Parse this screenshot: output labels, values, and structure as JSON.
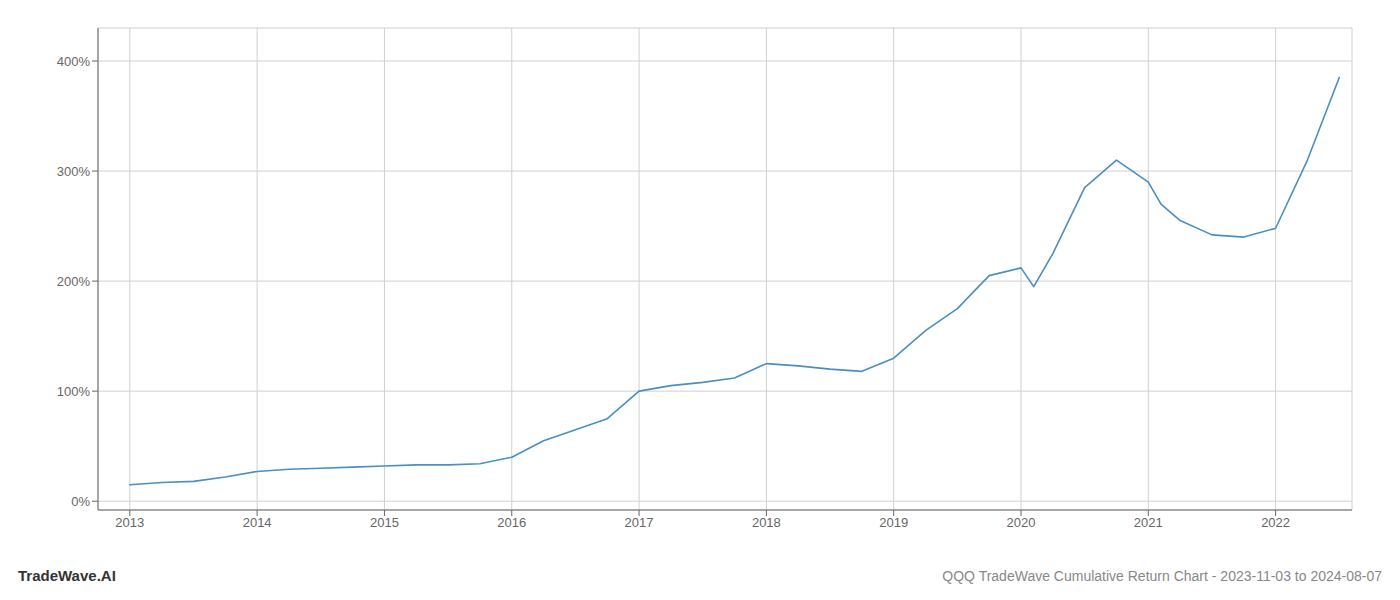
{
  "chart_data": {
    "type": "line",
    "title": "QQQ TradeWave Cumulative Return Chart - 2023-11-03 to 2024-08-07",
    "annotations": [
      "TradeWave.AI"
    ],
    "x": [
      2013.0,
      2013.25,
      2013.5,
      2013.75,
      2014.0,
      2014.25,
      2014.5,
      2014.75,
      2015.0,
      2015.25,
      2015.5,
      2015.75,
      2016.0,
      2016.25,
      2016.5,
      2016.75,
      2017.0,
      2017.25,
      2017.5,
      2017.75,
      2018.0,
      2018.25,
      2018.5,
      2018.75,
      2019.0,
      2019.25,
      2019.5,
      2019.75,
      2020.0,
      2020.1,
      2020.25,
      2020.5,
      2020.75,
      2021.0,
      2021.1,
      2021.25,
      2021.5,
      2021.75,
      2022.0,
      2022.25,
      2022.5
    ],
    "values": [
      15,
      17,
      18,
      22,
      27,
      29,
      30,
      31,
      32,
      33,
      33,
      34,
      40,
      55,
      65,
      75,
      100,
      105,
      108,
      112,
      125,
      123,
      120,
      118,
      130,
      155,
      175,
      205,
      212,
      195,
      225,
      285,
      310,
      290,
      270,
      255,
      242,
      240,
      248,
      310,
      385
    ],
    "color": "#4a8fc0",
    "xlim": [
      2012.75,
      2022.6
    ],
    "ylim": [
      -8,
      430
    ],
    "xticks": [
      2013,
      2014,
      2015,
      2016,
      2017,
      2018,
      2019,
      2020,
      2021,
      2022
    ],
    "yticks": [
      {
        "value": 0,
        "label": "0%"
      },
      {
        "value": 100,
        "label": "100%"
      },
      {
        "value": 200,
        "label": "200%"
      },
      {
        "value": 300,
        "label": "300%"
      },
      {
        "value": 400,
        "label": "400%"
      }
    ],
    "grid": true
  }
}
